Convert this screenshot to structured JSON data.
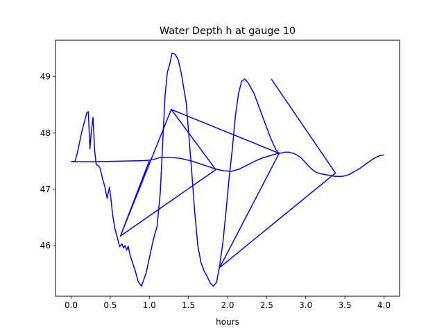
{
  "chart_data": {
    "type": "line",
    "title": "Water Depth h at gauge 10",
    "xlabel": "hours",
    "ylabel": "",
    "xlim": [
      -0.2,
      4.2
    ],
    "ylim": [
      45.1,
      49.65
    ],
    "xticks": [
      0.0,
      0.5,
      1.0,
      1.5,
      2.0,
      2.5,
      3.0,
      3.5,
      4.0
    ],
    "xtick_labels": [
      "0.0",
      "0.5",
      "1.0",
      "1.5",
      "2.0",
      "2.5",
      "3.0",
      "3.5",
      "4.0"
    ],
    "yticks": [
      46,
      47,
      48,
      49
    ],
    "ytick_labels": [
      "46",
      "47",
      "48",
      "49"
    ],
    "grid": false,
    "series": [
      {
        "color": "#0000ff",
        "x": [
          0.0,
          0.05,
          0.08,
          0.11,
          0.14,
          0.17,
          0.2,
          0.22,
          0.24,
          0.26,
          0.28,
          0.3,
          0.32,
          0.34,
          0.37,
          0.4,
          0.43,
          0.46,
          0.49,
          0.51,
          0.53,
          0.56,
          0.59,
          0.62,
          0.65,
          0.67,
          0.69,
          0.71,
          0.73,
          0.75,
          0.78,
          0.82,
          0.86,
          0.9,
          0.93,
          0.96,
          1.0,
          1.05,
          1.1,
          1.14,
          1.17,
          1.2,
          1.23,
          1.26,
          1.29,
          1.33,
          1.37,
          1.41,
          1.44,
          1.47,
          1.5,
          1.54,
          1.58,
          1.62,
          1.66,
          1.7,
          1.74,
          1.78,
          1.82,
          1.86,
          1.9,
          1.94,
          1.98,
          2.02,
          2.06,
          2.1,
          2.14,
          2.18,
          2.22,
          2.26,
          2.3,
          2.34,
          2.38,
          2.42,
          2.46,
          2.5,
          2.54,
          2.58,
          2.62,
          2.66,
          2.7,
          2.74,
          2.78,
          2.82,
          2.86,
          2.9,
          2.94,
          2.98,
          3.02,
          3.06,
          3.1,
          3.14,
          3.18,
          3.22,
          3.26,
          3.3,
          3.34,
          3.38,
          3.42,
          3.46,
          3.5,
          3.55,
          3.6,
          3.65,
          3.7,
          3.75,
          3.8,
          3.85,
          3.9,
          3.95,
          4.0
        ],
        "values": [
          47.49,
          47.5,
          47.65,
          47.85,
          48.05,
          48.2,
          48.36,
          48.38,
          47.72,
          48.05,
          48.28,
          47.7,
          47.44,
          47.43,
          47.38,
          47.2,
          47.05,
          46.84,
          47.04,
          46.82,
          46.55,
          46.3,
          46.15,
          45.98,
          46.03,
          45.96,
          46.0,
          45.92,
          45.99,
          45.85,
          45.72,
          45.55,
          45.35,
          45.28,
          45.4,
          45.52,
          45.78,
          46.1,
          46.35,
          46.95,
          47.8,
          48.65,
          49.08,
          49.22,
          49.42,
          49.4,
          49.3,
          49.05,
          48.8,
          48.55,
          48.05,
          47.35,
          46.6,
          46.0,
          45.7,
          45.55,
          45.45,
          45.33,
          45.28,
          45.35,
          45.65,
          46.05,
          46.6,
          47.2,
          47.7,
          48.3,
          48.7,
          48.92,
          48.96,
          48.9,
          48.8,
          48.7,
          48.55,
          48.4,
          48.25,
          48.1,
          47.95,
          47.82,
          47.7,
          47.64,
          47.65,
          47.66,
          47.66,
          47.65,
          47.63,
          47.6,
          47.56,
          47.5,
          47.44,
          47.38,
          47.33,
          47.3,
          47.28,
          47.27,
          47.26,
          47.25,
          47.24,
          47.23,
          47.23,
          47.23,
          47.24,
          47.26,
          47.3,
          47.34,
          47.38,
          47.43,
          47.48,
          47.53,
          47.57,
          47.6,
          47.61
        ]
      },
      {
        "color": "#0000ff",
        "x": [
          0.0,
          0.3,
          0.6,
          0.95,
          1.05,
          1.15,
          1.25,
          1.4,
          1.55,
          1.7,
          1.85,
          1.95,
          2.05,
          2.15,
          2.25,
          2.35,
          2.45,
          2.55,
          2.62,
          2.66
        ],
        "values": [
          47.49,
          47.49,
          47.5,
          47.51,
          47.53,
          47.57,
          47.57,
          47.55,
          47.5,
          47.43,
          47.36,
          47.33,
          47.32,
          47.36,
          47.43,
          47.5,
          47.56,
          47.6,
          47.63,
          47.64
        ]
      },
      {
        "color": "#0000ff",
        "x": [
          1.0,
          0.63,
          1.85,
          0.63,
          1.28,
          1.85,
          1.28,
          2.66,
          1.9
        ],
        "values": [
          47.51,
          46.17,
          47.35,
          46.17,
          48.42,
          47.35,
          48.42,
          47.64,
          45.61
        ]
      },
      {
        "color": "#0000ff",
        "x": [
          2.56,
          3.38,
          1.9,
          3.38
        ],
        "values": [
          48.96,
          47.29,
          45.61,
          47.29
        ]
      }
    ]
  }
}
